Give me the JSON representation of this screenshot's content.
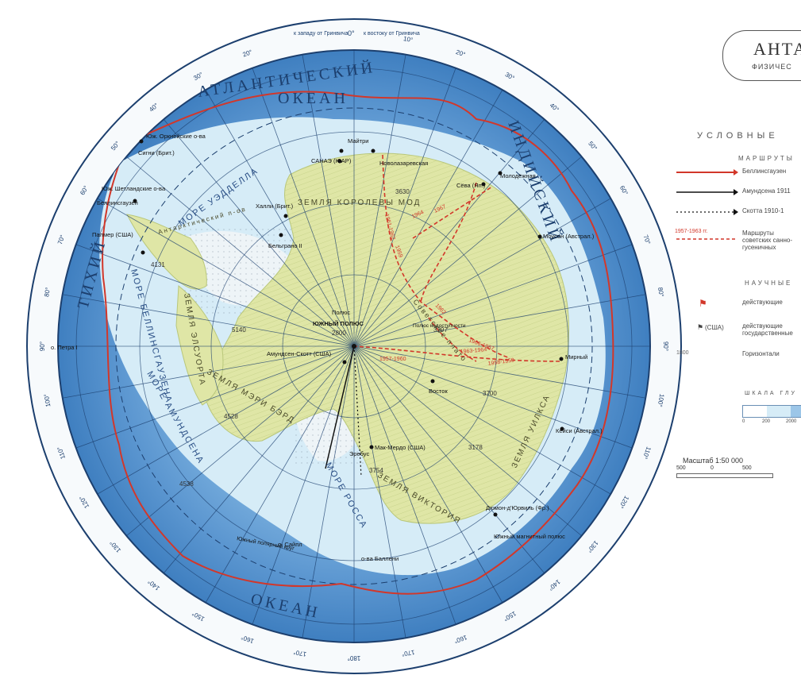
{
  "colors": {
    "ocean_deep": "#2f6fb6",
    "ocean_mid": "#5b96d0",
    "ocean_light": "#9cc6e8",
    "shelf": "#d6ecf7",
    "land": "#dfe6a6",
    "ice_shelf": "#eef4f7",
    "route_red": "#d2372a",
    "grid": "#1c3f6e"
  },
  "title": {
    "main": "АНТА",
    "sub": "ФИЗИЧЕС"
  },
  "ring": {
    "top_west": "к западу от Гринвича",
    "zero": "0°",
    "top_east": "к востоку от Гринвича",
    "degrees": [
      "10°",
      "20°",
      "30°",
      "40°",
      "50°",
      "60°",
      "70°",
      "80°",
      "90°",
      "100°",
      "110°",
      "120°",
      "130°",
      "140°",
      "150°",
      "160°",
      "170°",
      "180°",
      "170°",
      "160°",
      "150°",
      "140°",
      "130°",
      "120°",
      "110°",
      "100°",
      "90°",
      "80°",
      "70°",
      "60°",
      "50°",
      "40°",
      "30°",
      "20°"
    ]
  },
  "oceans": {
    "atlantic_1": "АТЛАНТИЧЕСКИЙ",
    "atlantic_2": "ОКЕАН",
    "indian": "ИНДИЙСКИЙ",
    "pacific_west": "ТИХИЙ",
    "pacific_south": "ОКЕАН"
  },
  "seas": {
    "weddell": "МОРЕ УЭДДЕЛЛА",
    "bellingshausen": "МОРЕ БЕЛЛИНСГАУЗЕНА",
    "amundsen": "МОРЕ АМУНДСЕНА",
    "ross": "МОРЕ РОССА"
  },
  "regions": {
    "queen_maud": "ЗЕМЛЯ КОРОЛЕВЫ МОД",
    "ellsworth": "ЗЕМЛЯ ЭЛСУОРТА",
    "marie_byrd": "ЗЕМЛЯ МЭРИ БЭРД",
    "wilkes": "ЗЕМЛЯ УИЛКСА",
    "victoria": "ЗЕМЛЯ ВИКТОРИЯ",
    "antarctic_peninsula": "Антарктический п-ов",
    "soviet_plateau": "Советское плато"
  },
  "places": {
    "south_orkney": "Юж. Оркнейские о-ва",
    "signy": "Сигни (Брит.)",
    "south_shetland": "Юж. Шетландские о-ва",
    "bellingshausen_st": "Беллинсгаузен",
    "palmer": "Палмер (США)",
    "novolazarevskaya": "Новолазаревская",
    "maitri": "Майтри",
    "sanae": "САНАЭ (ЮАР)",
    "syowa": "Сёва (Яп.)",
    "molodyozhnaya": "Молодёжная",
    "mawson": "Моусон (Австрал.)",
    "halley": "Халли (Брит.)",
    "belgrano": "Бельграно II",
    "pole_1": "Полюс",
    "pole_2": "ЮЖНЫЙ ПОЛЮС",
    "pole_inaccessibility": "Полюс недоступности",
    "amundsen_scott": "Амундсен-Скотт (США)",
    "vostok": "Восток",
    "mirny": "Мирный",
    "casey": "Кейси (Австрал.)",
    "mcmurdo": "Мак-Мердо (США)",
    "erebus": "Эребус",
    "dumont": "Дюмон-д'Юрвиль (Фр.)",
    "magnetic_pole": "Южный магнитный полюс",
    "peter_i": "о. Петра I",
    "siple": "о. Сайпл",
    "balleny": "о-ва Баллени",
    "polar_circle": "Южный полярный круг"
  },
  "elevations": [
    "3630",
    "4131",
    "5140",
    "2800",
    "3397",
    "3700",
    "4528",
    "3754",
    "3178",
    "4538"
  ],
  "route_labels": [
    "1957-1960",
    "1958-1959",
    "1961-1962",
    "1963-1964",
    "1964",
    "1959",
    "1967",
    "1962",
    "1966-1967"
  ],
  "legend": {
    "head": "УСЛОВНЫЕ",
    "routes_title": "МАРШРУТЫ",
    "rows": [
      {
        "label": "Беллинсгаузен"
      },
      {
        "label": "Амундсена 1911"
      },
      {
        "label": "Скотта 1910-1"
      },
      {
        "label": "Маршруты советских санно-гусеничных",
        "code": "1957-1963 гг."
      }
    ],
    "science_title": "НАУЧНЫЕ",
    "science_rows": [
      {
        "label": "действующие"
      },
      {
        "label": "действующие государственные",
        "code": "(США)"
      },
      {
        "label": "Горизонтали",
        "code": "1800"
      }
    ],
    "depth_title": "ШКАЛА ГЛУ",
    "depth_ticks": [
      "0",
      "200",
      "2000"
    ],
    "scale_text": "Масштаб 1:50 000",
    "scale_ticks": [
      "500",
      "0",
      "500"
    ]
  }
}
